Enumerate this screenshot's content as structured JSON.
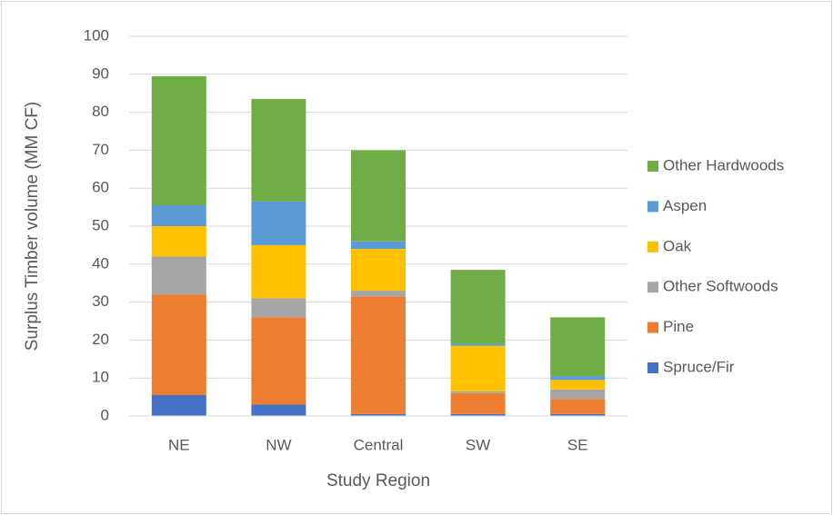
{
  "chart_data": {
    "type": "stacked_bar",
    "y_axis_label": "Surplus Timber volume (MM CF)",
    "x_axis_label": "Study Region",
    "categories": [
      "NE",
      "NW",
      "Central",
      "SW",
      "SE"
    ],
    "series": [
      {
        "name": "Spruce/Fir",
        "color": "#4472c4",
        "values": [
          5.5,
          3,
          0.5,
          0.5,
          0.5
        ]
      },
      {
        "name": "Pine",
        "color": "#ed7d31",
        "values": [
          26.5,
          23,
          31,
          5.5,
          4
        ]
      },
      {
        "name": "Other Softwoods",
        "color": "#a5a5a5",
        "values": [
          10,
          5,
          1.5,
          0.5,
          2.5
        ]
      },
      {
        "name": "Oak",
        "color": "#ffc000",
        "values": [
          8,
          14,
          11,
          12,
          2.5
        ]
      },
      {
        "name": "Aspen",
        "color": "#5b9bd5",
        "values": [
          5.5,
          11.5,
          2,
          0.5,
          1
        ]
      },
      {
        "name": "Other Hardwoods",
        "color": "#70ad47",
        "values": [
          34,
          27,
          24,
          19.5,
          15.5
        ]
      }
    ],
    "ylim": [
      0,
      100
    ],
    "yticks": [
      0,
      10,
      20,
      30,
      40,
      50,
      60,
      70,
      80,
      90,
      100
    ],
    "grid": true,
    "legend": "right"
  }
}
